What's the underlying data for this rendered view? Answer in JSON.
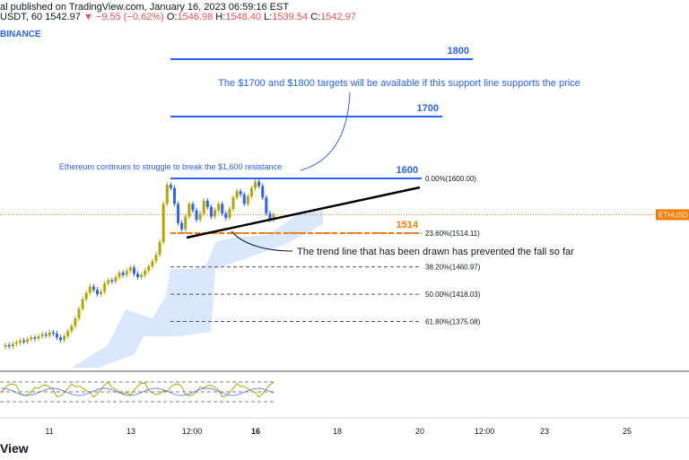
{
  "header": {
    "author_fragment": "al",
    "published_text": "published on TradingView.com, January 16, 2023 06:59:16 EST",
    "symbol_fragment": "USDT, 60",
    "last_price": "1542.97",
    "change": "−9.55 (−0.62%)",
    "open_label": "O:",
    "open": "1546.98",
    "high_label": "H:",
    "high": "1548.40",
    "low_label": "L:",
    "low": "1539.54",
    "close_label": "C:",
    "close": "1542.97",
    "exchange_fragment": "BINANCE"
  },
  "price_tag": "ETHUSD",
  "watermark_fragment": "View",
  "colors": {
    "bull": "#b5a600",
    "bear": "#2962ff",
    "level_blue": "#2962ff",
    "level_orange": "#f57c00",
    "annotation": "#2962ff",
    "cloud": "#bbd3fb"
  },
  "chart_data": {
    "type": "candlestick",
    "symbol": "ETHUSDT",
    "timeframe": "60",
    "x_ticks": [
      "11",
      "13",
      "12:00",
      "16",
      "18",
      "20",
      "12:00",
      "23",
      "25"
    ],
    "y_range": [
      1240,
      1880
    ],
    "levels": [
      {
        "label": "1800",
        "value": 1800,
        "color": "level_blue"
      },
      {
        "label": "1700",
        "value": 1700,
        "color": "level_blue"
      },
      {
        "label": "1600",
        "value": 1600,
        "color": "level_blue"
      },
      {
        "label": "1514",
        "value": 1514,
        "color": "level_orange"
      }
    ],
    "fibonacci": [
      {
        "label": "0.00%(1600.00)",
        "value": 1600.0
      },
      {
        "label": "23.60%(1514.11)",
        "value": 1514.11
      },
      {
        "label": "38.20%(1460.97)",
        "value": 1460.97
      },
      {
        "label": "50.00%(1418.03)",
        "value": 1418.03
      },
      {
        "label": "61.80%(1375.08)",
        "value": 1375.08
      }
    ],
    "annotations": [
      {
        "name": "targets-note",
        "text": "The $1700 and $1800 targets will be available if this support line supports the price"
      },
      {
        "name": "resistance-note",
        "text": "Ethereum continues to struggle to break the $1,600 resistance"
      },
      {
        "name": "trendline-note",
        "text": "The trend line that has been drawn has prevented the fall so far"
      }
    ],
    "price_path": [
      1335,
      1338,
      1336,
      1340,
      1342,
      1345,
      1343,
      1347,
      1350,
      1348,
      1352,
      1355,
      1353,
      1358,
      1356,
      1350,
      1346,
      1352,
      1360,
      1368,
      1380,
      1395,
      1410,
      1420,
      1430,
      1425,
      1418,
      1422,
      1435,
      1440,
      1438,
      1445,
      1452,
      1448,
      1455,
      1460,
      1450,
      1445,
      1448,
      1455,
      1462,
      1470,
      1480,
      1500,
      1560,
      1590,
      1585,
      1560,
      1530,
      1520,
      1540,
      1560,
      1550,
      1535,
      1545,
      1565,
      1555,
      1540,
      1550,
      1560,
      1545,
      1538,
      1552,
      1570,
      1580,
      1575,
      1560,
      1572,
      1585,
      1595,
      1588,
      1570,
      1545,
      1535,
      1542.97
    ],
    "trend_line": {
      "from": [
        1,
        1505
      ],
      "to": [
        2,
        1590
      ]
    },
    "oscillator_range": [
      0,
      100
    ]
  }
}
